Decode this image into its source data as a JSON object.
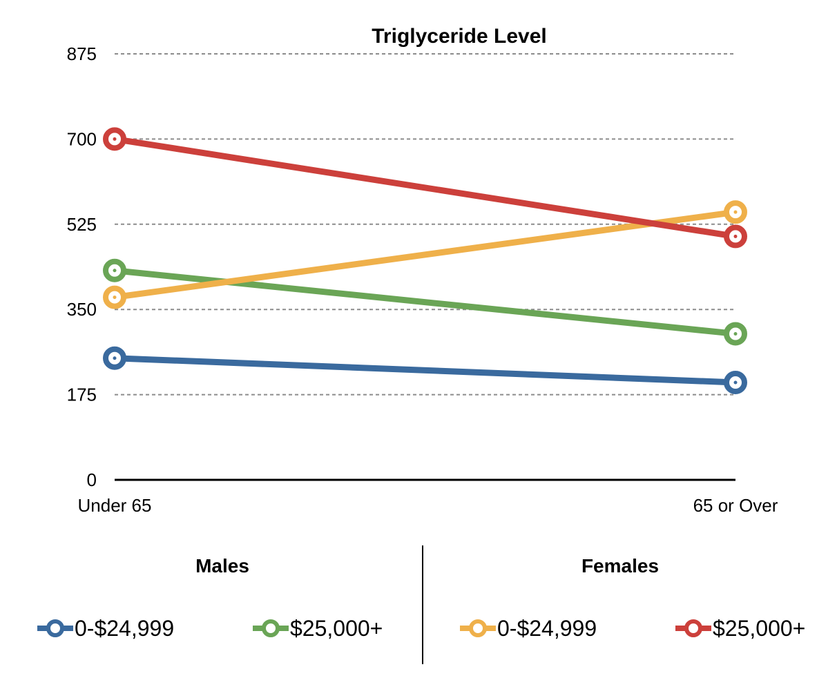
{
  "chart_data": {
    "type": "line",
    "title": "Triglyceride Level",
    "categories": [
      "Under 65",
      "65 or Over"
    ],
    "ylim": [
      0,
      875
    ],
    "yticks": [
      0,
      175,
      350,
      525,
      700,
      875
    ],
    "grid": "horizontal dashed",
    "series": [
      {
        "group": "Males",
        "name": "0-$24,999",
        "color": "#3a6a9e",
        "values": [
          250,
          200
        ]
      },
      {
        "group": "Males",
        "name": "$25,000+",
        "color": "#6aa556",
        "values": [
          430,
          300
        ]
      },
      {
        "group": "Females",
        "name": "0-$24,999",
        "color": "#efb04a",
        "values": [
          375,
          550
        ]
      },
      {
        "group": "Females",
        "name": "$25,000+",
        "color": "#cc403b",
        "values": [
          700,
          500
        ]
      }
    ]
  },
  "legend": {
    "males_title": "Males",
    "females_title": "Females",
    "items": [
      {
        "label": "0-$24,999",
        "color": "#3a6a9e"
      },
      {
        "label": "$25,000+",
        "color": "#6aa556"
      },
      {
        "label": "0-$24,999",
        "color": "#efb04a"
      },
      {
        "label": "$25,000+",
        "color": "#cc403b"
      }
    ]
  }
}
